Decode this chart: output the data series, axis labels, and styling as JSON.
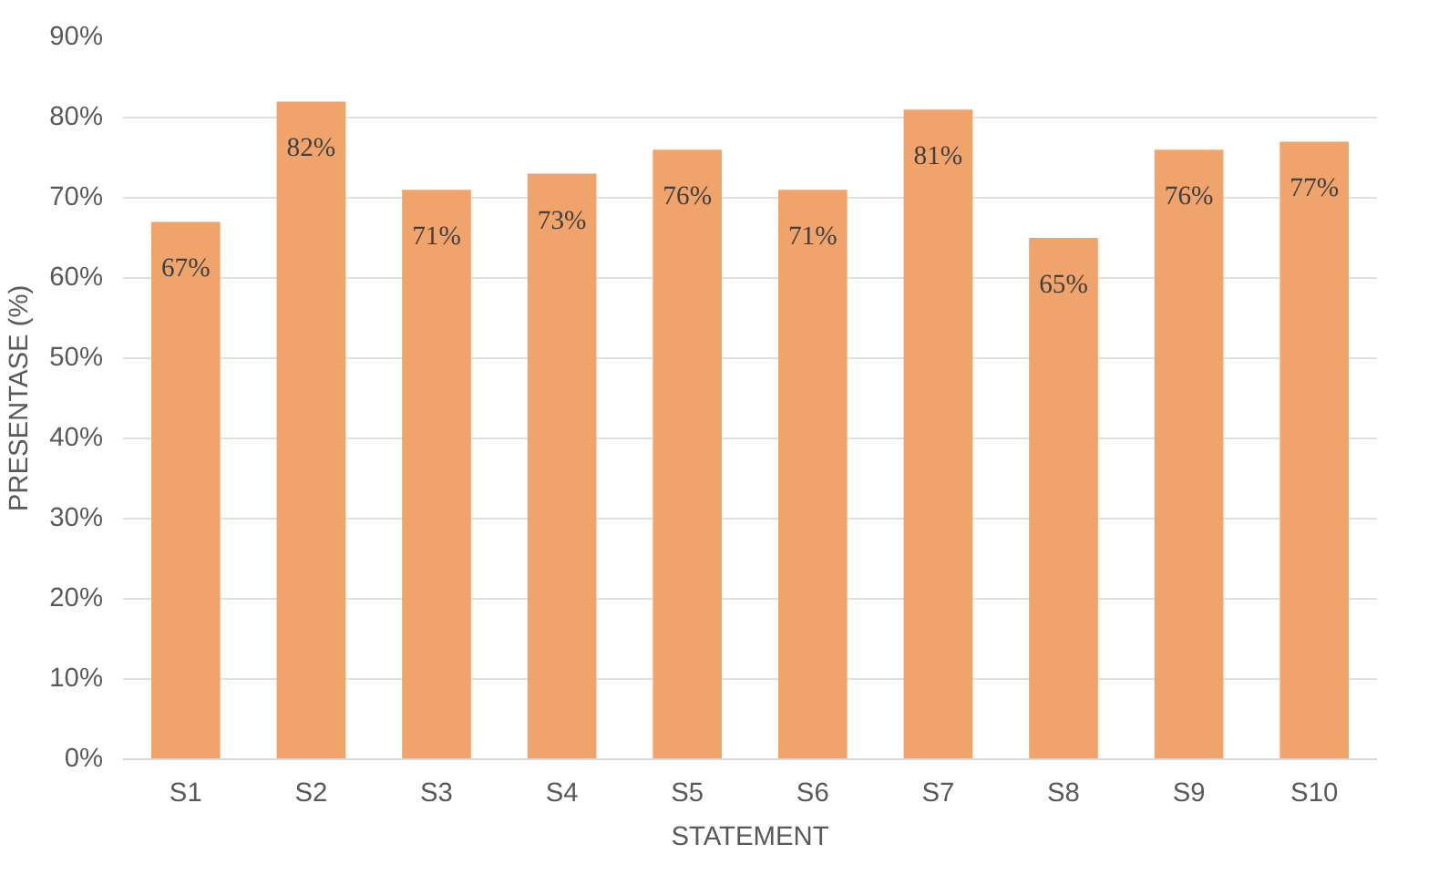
{
  "chart_data": {
    "type": "bar",
    "xlabel": "STATEMENT",
    "ylabel": "PRESENTASE (%)",
    "categories": [
      "S1",
      "S2",
      "S3",
      "S4",
      "S5",
      "S6",
      "S7",
      "S8",
      "S9",
      "S10"
    ],
    "values": [
      67,
      82,
      71,
      73,
      76,
      71,
      81,
      65,
      76,
      77
    ],
    "value_labels": [
      "67%",
      "82%",
      "71%",
      "73%",
      "76%",
      "71%",
      "81%",
      "65%",
      "76%",
      "77%"
    ],
    "color": "#f0a46c",
    "ylim": [
      0,
      90
    ],
    "yticks": [
      {
        "value": 0,
        "label": "0%"
      },
      {
        "value": 10,
        "label": "10%"
      },
      {
        "value": 20,
        "label": "20%"
      },
      {
        "value": 30,
        "label": "30%"
      },
      {
        "value": 40,
        "label": "40%"
      },
      {
        "value": 50,
        "label": "50%"
      },
      {
        "value": 60,
        "label": "60%"
      },
      {
        "value": 70,
        "label": "70%"
      },
      {
        "value": 80,
        "label": "80%"
      },
      {
        "value": 90,
        "label": "90%"
      }
    ],
    "grid": "y"
  }
}
